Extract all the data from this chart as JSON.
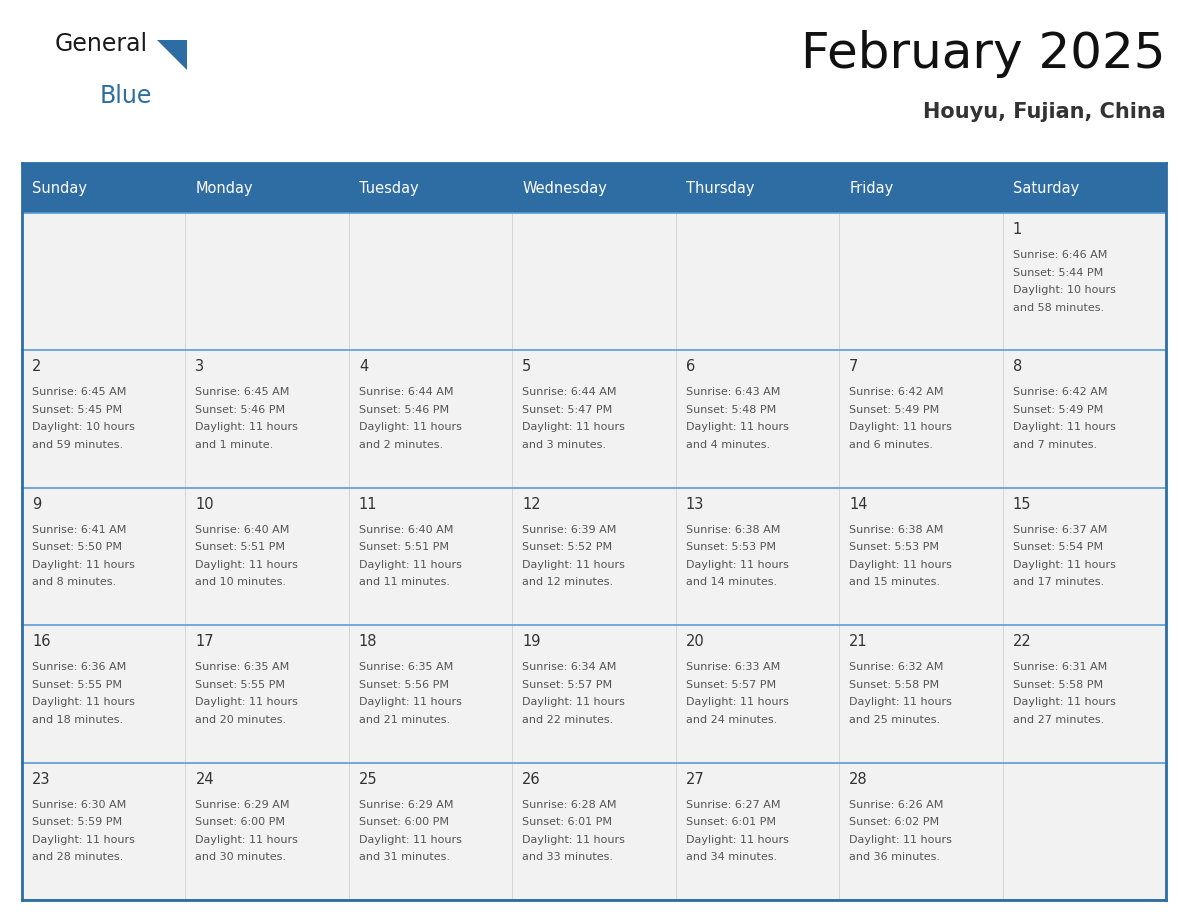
{
  "title": "February 2025",
  "subtitle": "Houyu, Fujian, China",
  "header_bg": "#2E6DA4",
  "header_text": "#FFFFFF",
  "cell_bg_light": "#F2F2F2",
  "cell_bg_white": "#FFFFFF",
  "border_color": "#2E6DA4",
  "divider_color": "#5B9BD5",
  "day_names": [
    "Sunday",
    "Monday",
    "Tuesday",
    "Wednesday",
    "Thursday",
    "Friday",
    "Saturday"
  ],
  "days": [
    {
      "day": 1,
      "col": 6,
      "row": 0,
      "sunrise": "6:46 AM",
      "sunset": "5:44 PM",
      "daylight_h": "10 hours",
      "daylight_m": "58 minutes."
    },
    {
      "day": 2,
      "col": 0,
      "row": 1,
      "sunrise": "6:45 AM",
      "sunset": "5:45 PM",
      "daylight_h": "10 hours",
      "daylight_m": "59 minutes."
    },
    {
      "day": 3,
      "col": 1,
      "row": 1,
      "sunrise": "6:45 AM",
      "sunset": "5:46 PM",
      "daylight_h": "11 hours",
      "daylight_m": "1 minute."
    },
    {
      "day": 4,
      "col": 2,
      "row": 1,
      "sunrise": "6:44 AM",
      "sunset": "5:46 PM",
      "daylight_h": "11 hours",
      "daylight_m": "2 minutes."
    },
    {
      "day": 5,
      "col": 3,
      "row": 1,
      "sunrise": "6:44 AM",
      "sunset": "5:47 PM",
      "daylight_h": "11 hours",
      "daylight_m": "3 minutes."
    },
    {
      "day": 6,
      "col": 4,
      "row": 1,
      "sunrise": "6:43 AM",
      "sunset": "5:48 PM",
      "daylight_h": "11 hours",
      "daylight_m": "4 minutes."
    },
    {
      "day": 7,
      "col": 5,
      "row": 1,
      "sunrise": "6:42 AM",
      "sunset": "5:49 PM",
      "daylight_h": "11 hours",
      "daylight_m": "6 minutes."
    },
    {
      "day": 8,
      "col": 6,
      "row": 1,
      "sunrise": "6:42 AM",
      "sunset": "5:49 PM",
      "daylight_h": "11 hours",
      "daylight_m": "7 minutes."
    },
    {
      "day": 9,
      "col": 0,
      "row": 2,
      "sunrise": "6:41 AM",
      "sunset": "5:50 PM",
      "daylight_h": "11 hours",
      "daylight_m": "8 minutes."
    },
    {
      "day": 10,
      "col": 1,
      "row": 2,
      "sunrise": "6:40 AM",
      "sunset": "5:51 PM",
      "daylight_h": "11 hours",
      "daylight_m": "10 minutes."
    },
    {
      "day": 11,
      "col": 2,
      "row": 2,
      "sunrise": "6:40 AM",
      "sunset": "5:51 PM",
      "daylight_h": "11 hours",
      "daylight_m": "11 minutes."
    },
    {
      "day": 12,
      "col": 3,
      "row": 2,
      "sunrise": "6:39 AM",
      "sunset": "5:52 PM",
      "daylight_h": "11 hours",
      "daylight_m": "12 minutes."
    },
    {
      "day": 13,
      "col": 4,
      "row": 2,
      "sunrise": "6:38 AM",
      "sunset": "5:53 PM",
      "daylight_h": "11 hours",
      "daylight_m": "14 minutes."
    },
    {
      "day": 14,
      "col": 5,
      "row": 2,
      "sunrise": "6:38 AM",
      "sunset": "5:53 PM",
      "daylight_h": "11 hours",
      "daylight_m": "15 minutes."
    },
    {
      "day": 15,
      "col": 6,
      "row": 2,
      "sunrise": "6:37 AM",
      "sunset": "5:54 PM",
      "daylight_h": "11 hours",
      "daylight_m": "17 minutes."
    },
    {
      "day": 16,
      "col": 0,
      "row": 3,
      "sunrise": "6:36 AM",
      "sunset": "5:55 PM",
      "daylight_h": "11 hours",
      "daylight_m": "18 minutes."
    },
    {
      "day": 17,
      "col": 1,
      "row": 3,
      "sunrise": "6:35 AM",
      "sunset": "5:55 PM",
      "daylight_h": "11 hours",
      "daylight_m": "20 minutes."
    },
    {
      "day": 18,
      "col": 2,
      "row": 3,
      "sunrise": "6:35 AM",
      "sunset": "5:56 PM",
      "daylight_h": "11 hours",
      "daylight_m": "21 minutes."
    },
    {
      "day": 19,
      "col": 3,
      "row": 3,
      "sunrise": "6:34 AM",
      "sunset": "5:57 PM",
      "daylight_h": "11 hours",
      "daylight_m": "22 minutes."
    },
    {
      "day": 20,
      "col": 4,
      "row": 3,
      "sunrise": "6:33 AM",
      "sunset": "5:57 PM",
      "daylight_h": "11 hours",
      "daylight_m": "24 minutes."
    },
    {
      "day": 21,
      "col": 5,
      "row": 3,
      "sunrise": "6:32 AM",
      "sunset": "5:58 PM",
      "daylight_h": "11 hours",
      "daylight_m": "25 minutes."
    },
    {
      "day": 22,
      "col": 6,
      "row": 3,
      "sunrise": "6:31 AM",
      "sunset": "5:58 PM",
      "daylight_h": "11 hours",
      "daylight_m": "27 minutes."
    },
    {
      "day": 23,
      "col": 0,
      "row": 4,
      "sunrise": "6:30 AM",
      "sunset": "5:59 PM",
      "daylight_h": "11 hours",
      "daylight_m": "28 minutes."
    },
    {
      "day": 24,
      "col": 1,
      "row": 4,
      "sunrise": "6:29 AM",
      "sunset": "6:00 PM",
      "daylight_h": "11 hours",
      "daylight_m": "30 minutes."
    },
    {
      "day": 25,
      "col": 2,
      "row": 4,
      "sunrise": "6:29 AM",
      "sunset": "6:00 PM",
      "daylight_h": "11 hours",
      "daylight_m": "31 minutes."
    },
    {
      "day": 26,
      "col": 3,
      "row": 4,
      "sunrise": "6:28 AM",
      "sunset": "6:01 PM",
      "daylight_h": "11 hours",
      "daylight_m": "33 minutes."
    },
    {
      "day": 27,
      "col": 4,
      "row": 4,
      "sunrise": "6:27 AM",
      "sunset": "6:01 PM",
      "daylight_h": "11 hours",
      "daylight_m": "34 minutes."
    },
    {
      "day": 28,
      "col": 5,
      "row": 4,
      "sunrise": "6:26 AM",
      "sunset": "6:02 PM",
      "daylight_h": "11 hours",
      "daylight_m": "36 minutes."
    }
  ],
  "num_rows": 5,
  "num_cols": 7,
  "logo_text_general": "General",
  "logo_text_blue": "Blue",
  "logo_color_general": "#1a1a1a",
  "logo_color_blue": "#2E6DA4",
  "text_color_day": "#333333",
  "text_color_info": "#555555",
  "title_color": "#111111",
  "subtitle_color": "#333333",
  "daynum_fontsize": 10.5,
  "info_fontsize": 8.0,
  "header_fontsize": 10.5,
  "title_fontsize": 36,
  "subtitle_fontsize": 15,
  "logo_general_fontsize": 17,
  "logo_blue_fontsize": 17
}
